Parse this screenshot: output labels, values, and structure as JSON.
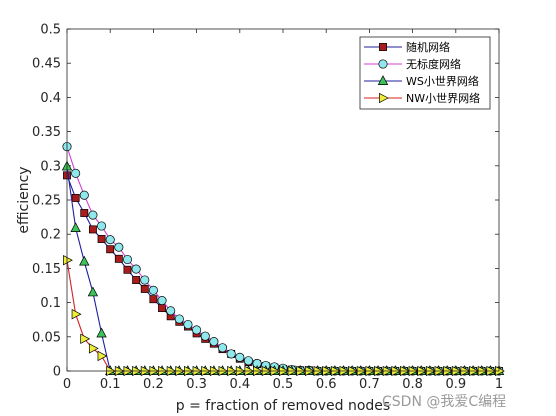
{
  "chart_data": {
    "type": "line",
    "xlabel": "p = fraction of removed nodes",
    "ylabel": "efficiency",
    "xlim": [
      0,
      1
    ],
    "ylim": [
      0,
      0.5
    ],
    "xticks": [
      "0",
      "0.1",
      "0.2",
      "0.3",
      "0.4",
      "0.5",
      "0.6",
      "0.7",
      "0.8",
      "0.9",
      "1"
    ],
    "yticks": [
      "0",
      "0.05",
      "0.1",
      "0.15",
      "0.2",
      "0.25",
      "0.3",
      "0.35",
      "0.4",
      "0.45",
      "0.5"
    ],
    "legend_position": "top-right",
    "series": [
      {
        "name": "随机网络",
        "line_color": "#1f1f9e",
        "marker": "square",
        "marker_fill": "#a81c1c",
        "x": [
          0,
          0.02,
          0.04,
          0.06,
          0.08,
          0.1,
          0.12,
          0.14,
          0.16,
          0.18,
          0.2,
          0.22,
          0.24,
          0.26,
          0.28,
          0.3,
          0.32,
          0.34,
          0.36,
          0.38,
          0.4,
          0.42,
          0.44,
          0.46,
          0.48,
          0.5,
          0.52,
          0.54,
          0.56,
          0.58,
          0.6,
          0.62,
          0.64,
          0.66,
          0.68,
          0.7,
          0.72,
          0.74,
          0.76,
          0.78,
          0.8,
          0.82,
          0.84,
          0.86,
          0.88,
          0.9,
          0.92,
          0.94,
          0.96,
          0.98,
          1
        ],
        "y": [
          0.286,
          0.253,
          0.231,
          0.207,
          0.193,
          0.178,
          0.164,
          0.148,
          0.133,
          0.12,
          0.105,
          0.092,
          0.08,
          0.072,
          0.065,
          0.055,
          0.047,
          0.04,
          0.032,
          0.025,
          0.018,
          0.013,
          0.01,
          0.007,
          0.005,
          0.003,
          0.002,
          0.001,
          0.001,
          0,
          0,
          0,
          0,
          0,
          0,
          0,
          0,
          0,
          0,
          0,
          0,
          0,
          0,
          0,
          0,
          0,
          0,
          0,
          0,
          0,
          0
        ]
      },
      {
        "name": "无标度网络",
        "line_color": "#d63fd6",
        "marker": "circle",
        "marker_fill": "#8fe8ec",
        "x": [
          0,
          0.02,
          0.04,
          0.06,
          0.08,
          0.1,
          0.12,
          0.14,
          0.16,
          0.18,
          0.2,
          0.22,
          0.24,
          0.26,
          0.28,
          0.3,
          0.32,
          0.34,
          0.36,
          0.38,
          0.4,
          0.42,
          0.44,
          0.46,
          0.48,
          0.5,
          0.52,
          0.54,
          0.56,
          0.58,
          0.6,
          0.62,
          0.64,
          0.66,
          0.68,
          0.7,
          0.72,
          0.74,
          0.76,
          0.78,
          0.8,
          0.82,
          0.84,
          0.86,
          0.88,
          0.9,
          0.92,
          0.94,
          0.96,
          0.98,
          1
        ],
        "y": [
          0.328,
          0.289,
          0.257,
          0.228,
          0.212,
          0.192,
          0.181,
          0.163,
          0.149,
          0.133,
          0.118,
          0.103,
          0.088,
          0.076,
          0.068,
          0.06,
          0.051,
          0.043,
          0.034,
          0.025,
          0.02,
          0.015,
          0.011,
          0.008,
          0.006,
          0.004,
          0.002,
          0.001,
          0.001,
          0,
          0,
          0,
          0,
          0,
          0,
          0,
          0,
          0,
          0,
          0,
          0,
          0,
          0,
          0,
          0,
          0,
          0,
          0,
          0,
          0,
          0
        ]
      },
      {
        "name": "WS小世界网络",
        "line_color": "#1f1f9e",
        "marker": "triangle-up",
        "marker_fill": "#3cc45a",
        "x": [
          0,
          0.02,
          0.04,
          0.06,
          0.08,
          0.1,
          0.12,
          0.14,
          0.16,
          0.18,
          0.2,
          0.22,
          0.24,
          0.26,
          0.28,
          0.3,
          0.32,
          0.34,
          0.36,
          0.38,
          0.4,
          0.42,
          0.44,
          0.46,
          0.48,
          0.5,
          0.52,
          0.54,
          0.56,
          0.58,
          0.6,
          0.62,
          0.64,
          0.66,
          0.68,
          0.7,
          0.72,
          0.74,
          0.76,
          0.78,
          0.8,
          0.82,
          0.84,
          0.86,
          0.88,
          0.9,
          0.92,
          0.94,
          0.96,
          0.98,
          1
        ],
        "y": [
          0.299,
          0.209,
          0.16,
          0.115,
          0.055,
          0,
          0,
          0,
          0,
          0,
          0,
          0,
          0,
          0,
          0,
          0,
          0,
          0,
          0,
          0,
          0,
          0,
          0,
          0,
          0,
          0,
          0,
          0,
          0,
          0,
          0,
          0,
          0,
          0,
          0,
          0,
          0,
          0,
          0,
          0,
          0,
          0,
          0,
          0,
          0,
          0,
          0,
          0,
          0,
          0,
          0
        ]
      },
      {
        "name": "NW小世界网络",
        "line_color": "#d62020",
        "marker": "triangle-right",
        "marker_fill": "#eded3a",
        "x": [
          0,
          0.02,
          0.04,
          0.06,
          0.08,
          0.1,
          0.12,
          0.14,
          0.16,
          0.18,
          0.2,
          0.22,
          0.24,
          0.26,
          0.28,
          0.3,
          0.32,
          0.34,
          0.36,
          0.38,
          0.4,
          0.42,
          0.44,
          0.46,
          0.48,
          0.5,
          0.52,
          0.54,
          0.56,
          0.58,
          0.6,
          0.62,
          0.64,
          0.66,
          0.68,
          0.7,
          0.72,
          0.74,
          0.76,
          0.78,
          0.8,
          0.82,
          0.84,
          0.86,
          0.88,
          0.9,
          0.92,
          0.94,
          0.96,
          0.98,
          1
        ],
        "y": [
          0.162,
          0.083,
          0.047,
          0.033,
          0.022,
          0,
          0,
          0,
          0,
          0,
          0,
          0,
          0,
          0,
          0,
          0,
          0,
          0,
          0,
          0,
          0,
          0,
          0,
          0,
          0,
          0,
          0,
          0,
          0,
          0,
          0,
          0,
          0,
          0,
          0,
          0,
          0,
          0,
          0,
          0,
          0,
          0,
          0,
          0,
          0,
          0,
          0,
          0,
          0,
          0,
          0
        ]
      }
    ]
  },
  "watermark": "CSDN @我爱C编程"
}
